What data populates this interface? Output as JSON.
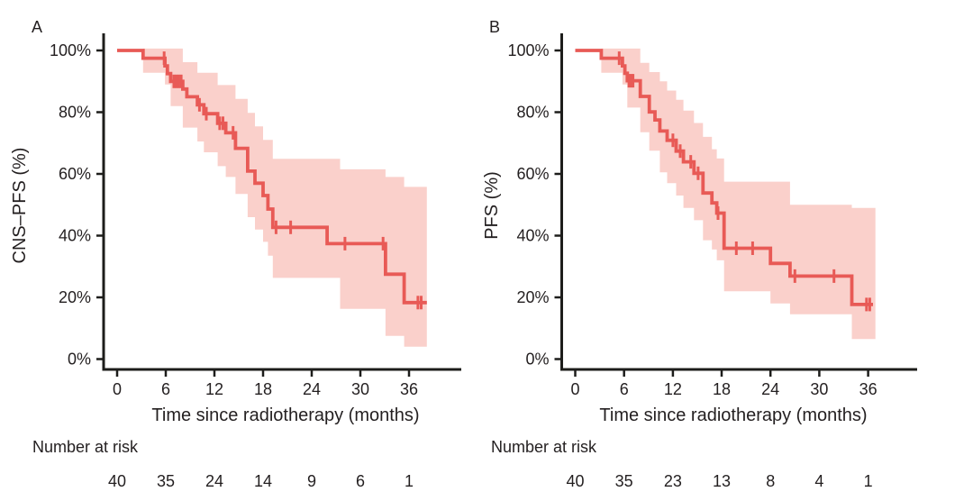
{
  "chart_data": [
    {
      "type": "line",
      "chart_kind": "kaplan-meier-survival-with-ci-band",
      "panel_label": "A",
      "ylabel": "CNS–PFS (%)",
      "xlabel": "Time since radiotherapy (months)",
      "risk_label": "Number at risk",
      "xticks": [
        0,
        6,
        12,
        18,
        24,
        30,
        36
      ],
      "ytick_values": [
        0,
        20,
        40,
        60,
        80,
        100
      ],
      "ytick_labels": [
        "0%",
        "20%",
        "40%",
        "60%",
        "80%",
        "100%"
      ],
      "xlim": [
        0,
        38.5
      ],
      "ylim": [
        0,
        100
      ],
      "grid": false,
      "legend": "none",
      "line_color": "#e85a56",
      "band_color": "#fad0cb",
      "axis_color": "#1d1d1b",
      "text_color": "#231f20",
      "survival_steps_pct": [
        [
          0,
          100
        ],
        [
          3.2,
          97.5
        ],
        [
          5.9,
          95.0
        ],
        [
          6.2,
          92.5
        ],
        [
          6.6,
          90.0
        ],
        [
          8.1,
          87.5
        ],
        [
          8.6,
          85.0
        ],
        [
          9.9,
          82.4
        ],
        [
          10.7,
          79.5
        ],
        [
          12.4,
          76.4
        ],
        [
          13.4,
          73.3
        ],
        [
          14.6,
          68.3
        ],
        [
          16.1,
          60.9
        ],
        [
          17.0,
          57.0
        ],
        [
          18.0,
          53.0
        ],
        [
          18.6,
          48.6
        ],
        [
          19.2,
          42.7
        ],
        [
          25.9,
          37.4
        ],
        [
          33.1,
          27.5
        ],
        [
          35.4,
          18.3
        ]
      ],
      "curve_end_time": 38.2,
      "censor_times": [
        5.8,
        7.0,
        7.3,
        7.6,
        7.9,
        10.15,
        11.0,
        12.65,
        13.05,
        14.3,
        19.6,
        21.4,
        28.1,
        32.8,
        37.1,
        37.5
      ],
      "ci_band_steps": [
        [
          3.2,
          92.8,
          100.6
        ],
        [
          5.9,
          89.0,
          100.6
        ],
        [
          6.6,
          82.0,
          100.6
        ],
        [
          8.1,
          75.0,
          96.2
        ],
        [
          9.9,
          70.5,
          92.8
        ],
        [
          10.7,
          67.0,
          92.8
        ],
        [
          12.4,
          62.5,
          88.8
        ],
        [
          13.4,
          59.0,
          88.8
        ],
        [
          14.6,
          53.5,
          84.3
        ],
        [
          16.1,
          46.0,
          79.8
        ],
        [
          17.0,
          42.0,
          75.4
        ],
        [
          18.0,
          38.0,
          71.0
        ],
        [
          18.6,
          33.5,
          71.0
        ],
        [
          19.2,
          26.3,
          64.9
        ],
        [
          27.5,
          16.3,
          61.5
        ],
        [
          33.1,
          7.5,
          59.0
        ],
        [
          35.4,
          4.0,
          55.8
        ]
      ],
      "band_end_time": 38.2,
      "number_at_risk": {
        "times": [
          0,
          6,
          12,
          18,
          24,
          30,
          36
        ],
        "counts": [
          40,
          35,
          24,
          14,
          9,
          6,
          1
        ]
      }
    },
    {
      "type": "line",
      "chart_kind": "kaplan-meier-survival-with-ci-band",
      "panel_label": "B",
      "ylabel": "PFS (%)",
      "xlabel": "Time since radiotherapy (months)",
      "risk_label": "Number at risk",
      "xticks": [
        0,
        6,
        12,
        18,
        24,
        30,
        36
      ],
      "ytick_values": [
        0,
        20,
        40,
        60,
        80,
        100
      ],
      "ytick_labels": [
        "0%",
        "20%",
        "40%",
        "60%",
        "80%",
        "100%"
      ],
      "xlim": [
        0,
        38.5
      ],
      "ylim": [
        0,
        100
      ],
      "grid": false,
      "legend": "none",
      "line_color": "#e85a56",
      "band_color": "#fad0cb",
      "axis_color": "#1d1d1b",
      "text_color": "#231f20",
      "survival_steps_pct": [
        [
          0,
          100
        ],
        [
          3.2,
          97.5
        ],
        [
          5.8,
          95.0
        ],
        [
          6.1,
          92.6
        ],
        [
          6.4,
          90.2
        ],
        [
          8.0,
          85.1
        ],
        [
          9.1,
          80.1
        ],
        [
          9.8,
          77.5
        ],
        [
          10.4,
          73.9
        ],
        [
          11.3,
          70.9
        ],
        [
          12.4,
          67.4
        ],
        [
          13.3,
          63.9
        ],
        [
          14.6,
          60.2
        ],
        [
          15.7,
          53.8
        ],
        [
          16.8,
          50.6
        ],
        [
          17.4,
          47.3
        ],
        [
          18.3,
          35.9
        ],
        [
          24.0,
          31.0
        ],
        [
          26.4,
          26.9
        ],
        [
          34.0,
          17.7
        ]
      ],
      "curve_end_time": 36.6,
      "censor_times": [
        5.4,
        6.6,
        6.85,
        7.1,
        12.0,
        12.9,
        14.2,
        15.1,
        17.55,
        19.8,
        21.8,
        27.0,
        31.8,
        35.8,
        36.2
      ],
      "ci_band_steps": [
        [
          3.2,
          92.8,
          100.6
        ],
        [
          5.8,
          89.0,
          100.6
        ],
        [
          6.4,
          81.5,
          100.6
        ],
        [
          8.0,
          73.5,
          96.0
        ],
        [
          9.1,
          67.5,
          93.0
        ],
        [
          10.4,
          60.5,
          90.0
        ],
        [
          11.3,
          57.0,
          87.0
        ],
        [
          12.4,
          53.0,
          84.0
        ],
        [
          13.3,
          49.0,
          80.5
        ],
        [
          14.6,
          45.0,
          76.5
        ],
        [
          15.7,
          38.5,
          72.0
        ],
        [
          16.8,
          35.5,
          68.0
        ],
        [
          17.4,
          32.0,
          65.0
        ],
        [
          18.3,
          22.0,
          57.5
        ],
        [
          24.0,
          18.0,
          57.5
        ],
        [
          26.4,
          14.5,
          50.0
        ],
        [
          34.0,
          6.5,
          49.0
        ]
      ],
      "band_end_time": 36.9,
      "number_at_risk": {
        "times": [
          0,
          6,
          12,
          18,
          24,
          30,
          36
        ],
        "counts": [
          40,
          35,
          23,
          13,
          8,
          4,
          1
        ]
      }
    }
  ]
}
